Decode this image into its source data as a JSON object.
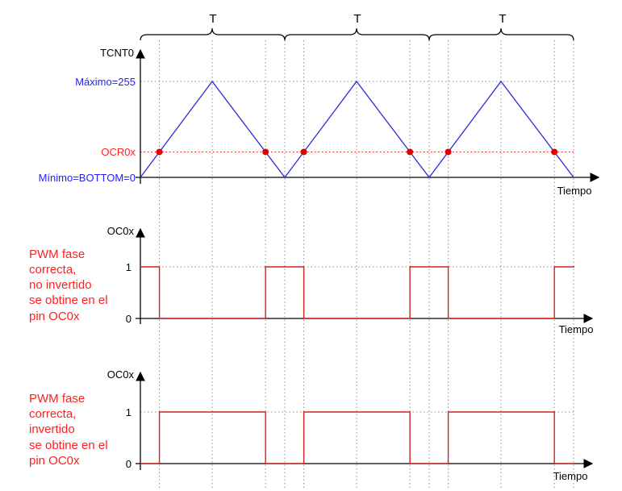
{
  "periods": {
    "label": "T",
    "labels": [
      "T",
      "T",
      "T"
    ]
  },
  "counter_plot": {
    "y_axis_label": "TCNT0",
    "x_axis_label": "Tiempo",
    "max_label": "Máximo=255",
    "compare_label": "OCR0x",
    "min_label": "Mínimo=BOTTOM=0",
    "max_value": 255,
    "min_value": 0,
    "compare_fraction": 0.265
  },
  "output_noninverted": {
    "y_axis_label": "OC0x",
    "x_axis_label": "Tiempo",
    "high_label": "1",
    "low_label": "0",
    "note_lines": [
      "PWM fase",
      "correcta,",
      "no invertido",
      "se obtine en el",
      "pin OC0x"
    ]
  },
  "output_inverted": {
    "y_axis_label": "OC0x",
    "x_axis_label": "Tiempo",
    "high_label": "1",
    "low_label": "0",
    "note_lines": [
      "PWM fase",
      "correcta,",
      "invertido",
      "se obtine en el",
      "pin OC0x"
    ]
  },
  "colors": {
    "counter_wave": "#2b2bd8",
    "compare": "#e00000",
    "output_wave": "#d42020",
    "note_text": "#ff2020",
    "max_label": "#2020ff",
    "axis": "#000000",
    "grid": "#8c8c8c"
  }
}
